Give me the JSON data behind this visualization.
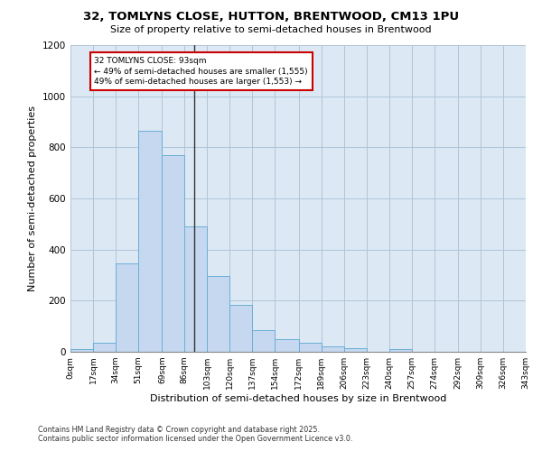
{
  "title": "32, TOMLYNS CLOSE, HUTTON, BRENTWOOD, CM13 1PU",
  "subtitle": "Size of property relative to semi-detached houses in Brentwood",
  "xlabel": "Distribution of semi-detached houses by size in Brentwood",
  "ylabel": "Number of semi-detached properties",
  "footer_line1": "Contains HM Land Registry data © Crown copyright and database right 2025.",
  "footer_line2": "Contains public sector information licensed under the Open Government Licence v3.0.",
  "annotation_title": "32 TOMLYNS CLOSE: 93sqm",
  "annotation_line2": "← 49% of semi-detached houses are smaller (1,555)",
  "annotation_line3": "49% of semi-detached houses are larger (1,553) →",
  "property_size": 93,
  "bin_edges": [
    0,
    17,
    34,
    51,
    69,
    86,
    103,
    120,
    137,
    154,
    172,
    189,
    206,
    223,
    240,
    257,
    274,
    292,
    309,
    326,
    343
  ],
  "bar_values": [
    10,
    35,
    345,
    865,
    770,
    490,
    295,
    185,
    85,
    50,
    35,
    20,
    15,
    0,
    10,
    0,
    0,
    0,
    0,
    0
  ],
  "bar_color": "#c5d8f0",
  "bar_edge_color": "#6baed6",
  "vline_color": "#333333",
  "annotation_box_edgecolor": "#cc0000",
  "background_color": "#ffffff",
  "plot_bg_color": "#dce9f5",
  "grid_color": "#b0c4d8",
  "ylim": [
    0,
    1200
  ],
  "yticks": [
    0,
    200,
    400,
    600,
    800,
    1000,
    1200
  ],
  "tick_labels": [
    "0sqm",
    "17sqm",
    "34sqm",
    "51sqm",
    "69sqm",
    "86sqm",
    "103sqm",
    "120sqm",
    "137sqm",
    "154sqm",
    "172sqm",
    "189sqm",
    "206sqm",
    "223sqm",
    "240sqm",
    "257sqm",
    "274sqm",
    "292sqm",
    "309sqm",
    "326sqm",
    "343sqm"
  ]
}
